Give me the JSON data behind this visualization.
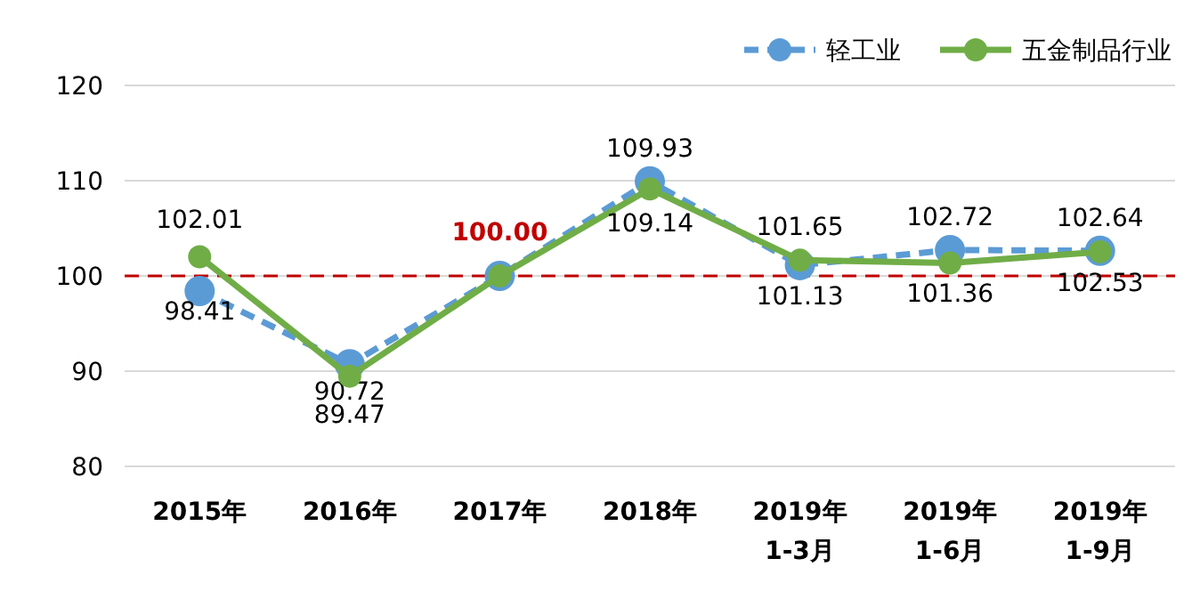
{
  "chart_data": {
    "type": "line",
    "categories": [
      "2015年",
      "2016年",
      "2017年",
      "2018年",
      "2019年 1-3月",
      "2019年 1-6月",
      "2019年 1-9月"
    ],
    "series": [
      {
        "name": "轻工业",
        "color": "#5b9bd5",
        "line_style": "dashed",
        "values": [
          98.41,
          90.72,
          100.0,
          109.93,
          101.13,
          102.72,
          102.64
        ],
        "value_labels": [
          "98.41",
          "90.72",
          null,
          "109.93",
          "101.13",
          "102.72",
          "102.64"
        ]
      },
      {
        "name": "五金制品行业",
        "color": "#70ad47",
        "line_style": "solid",
        "values": [
          102.01,
          89.47,
          100.0,
          109.14,
          101.65,
          101.36,
          102.53
        ],
        "value_labels": [
          "102.01",
          "89.47",
          null,
          "109.14",
          "101.65",
          "101.36",
          "102.53"
        ]
      }
    ],
    "annotations": [
      {
        "text": "100.00",
        "x": "2017年",
        "y": 100
      }
    ],
    "ref_lines": [
      {
        "axis": "y",
        "value": 100,
        "color": "#c00000",
        "line_style": "dashed"
      }
    ],
    "ylim": [
      80,
      120
    ],
    "yticks": [
      80,
      90,
      100,
      110,
      120
    ],
    "grid": "y",
    "legend": "top right",
    "marker": "circle"
  }
}
